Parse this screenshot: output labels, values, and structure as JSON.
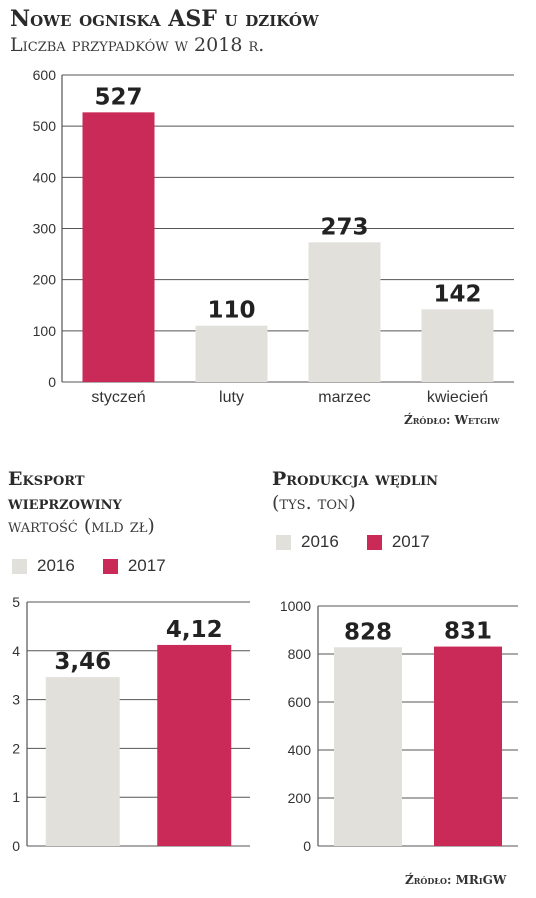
{
  "colors": {
    "highlight": "#c92a57",
    "neutral": "#e1e0db",
    "grid": "#555555"
  },
  "top": {
    "title": "Nowe ogniska ASF u dzików",
    "subtitle": "Liczba przypadków w 2018 r.",
    "source": "Źródło: Wetgiw"
  },
  "export": {
    "title_line1": "Eksport",
    "title_line2": "wieprzowiny",
    "subtitle": "wartość (mld zł)"
  },
  "production": {
    "title": "Produkcja wędlin",
    "subtitle": "(tys. ton)"
  },
  "legend": [
    "2016",
    "2017"
  ],
  "bottom_source": "Źródło: MRiGW",
  "chart_data": [
    {
      "type": "bar",
      "title": "Nowe ogniska ASF u dzików",
      "subtitle": "Liczba przypadków w 2018 r.",
      "categories": [
        "styczeń",
        "luty",
        "marzec",
        "kwiecień"
      ],
      "values": [
        527,
        110,
        273,
        142
      ],
      "value_labels": [
        "527",
        "110",
        "273",
        "142"
      ],
      "bar_colors": [
        "#c92a57",
        "#e1e0db",
        "#e1e0db",
        "#e1e0db"
      ],
      "ylim": [
        0,
        600
      ],
      "yticks": [
        0,
        100,
        200,
        300,
        400,
        500,
        600
      ],
      "grid": true
    },
    {
      "type": "bar",
      "title": "Eksport wieprzowiny",
      "subtitle": "wartość (mld zł)",
      "categories": [
        "2016",
        "2017"
      ],
      "values": [
        3.46,
        4.12
      ],
      "value_labels": [
        "3,46",
        "4,12"
      ],
      "bar_colors": [
        "#e1e0db",
        "#c92a57"
      ],
      "ylim": [
        0,
        5
      ],
      "yticks": [
        0,
        1,
        2,
        3,
        4,
        5
      ],
      "grid": true
    },
    {
      "type": "bar",
      "title": "Produkcja wędlin",
      "subtitle": "(tys. ton)",
      "categories": [
        "2016",
        "2017"
      ],
      "values": [
        828,
        831
      ],
      "value_labels": [
        "828",
        "831"
      ],
      "bar_colors": [
        "#e1e0db",
        "#c92a57"
      ],
      "ylim": [
        0,
        1000
      ],
      "yticks": [
        0,
        200,
        400,
        600,
        800,
        1000
      ],
      "grid": true
    }
  ]
}
